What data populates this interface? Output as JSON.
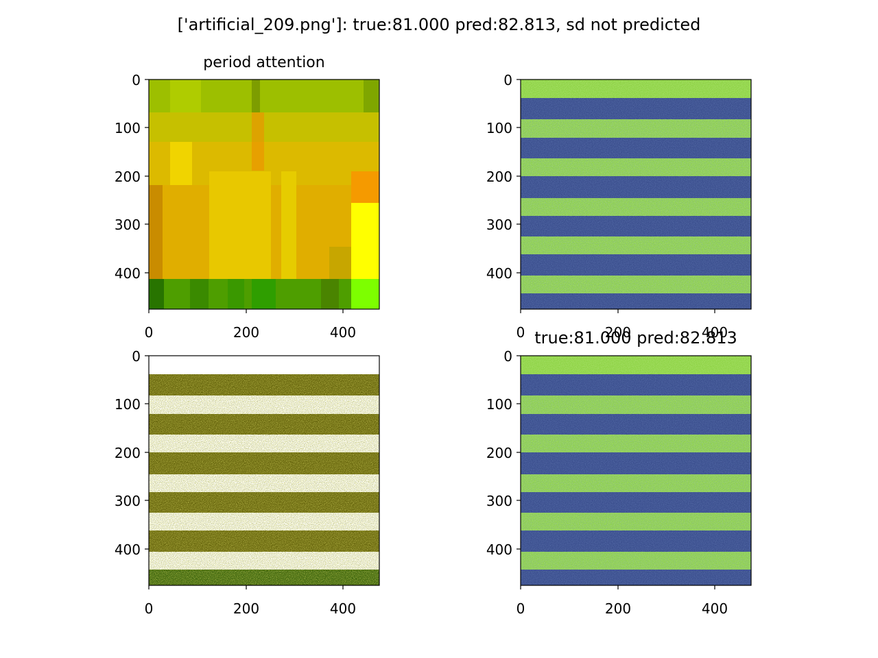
{
  "figure": {
    "suptitle": "['artificial_209.png']: true:81.000 pred:82.813, sd not predicted"
  },
  "panels": [
    {
      "title": "period attention",
      "x_ticks": [
        "0",
        "200",
        "400"
      ],
      "y_ticks": [
        "0",
        "100",
        "200",
        "300",
        "400"
      ],
      "image": "colored attention heatmap (yellow/orange/green blocks)"
    },
    {
      "title": "",
      "x_ticks": [
        "0",
        "200",
        "400"
      ],
      "y_ticks": [
        "0",
        "100",
        "200",
        "300",
        "400"
      ],
      "image": "noisy horizontal stripes, viridis (green / dark blue)"
    },
    {
      "title": "",
      "x_ticks": [
        "0",
        "200",
        "400"
      ],
      "y_ticks": [
        "0",
        "100",
        "200",
        "300",
        "400"
      ],
      "image": "noisy stripes masked by attention (yellow/green on white)"
    },
    {
      "title": "true:81.000 pred:82.813",
      "x_ticks": [
        "0",
        "200",
        "400"
      ],
      "y_ticks": [
        "0",
        "100",
        "200",
        "300",
        "400"
      ],
      "image": "noisy horizontal stripes, viridis (green / dark blue)"
    }
  ],
  "chart_data": [
    {
      "type": "heatmap",
      "title": "period attention",
      "xlim": [
        0,
        475
      ],
      "ylim": [
        475,
        0
      ],
      "x_ticks": [
        0,
        200,
        400
      ],
      "y_ticks": [
        0,
        100,
        200,
        300,
        400
      ],
      "bottom_band_start": 410,
      "colors": {
        "upper": "#9fc400",
        "middle": "#e0b000",
        "bottom": "#3fa000",
        "bright": "#ffff00"
      }
    },
    {
      "type": "heatmap",
      "title": "",
      "xlim": [
        0,
        475
      ],
      "ylim": [
        475,
        0
      ],
      "x_ticks": [
        0,
        200,
        400
      ],
      "y_ticks": [
        0,
        100,
        200,
        300,
        400
      ],
      "dark_bands": [
        [
          38,
          82
        ],
        [
          120,
          162
        ],
        [
          200,
          245
        ],
        [
          282,
          325
        ],
        [
          362,
          405
        ],
        [
          442,
          475
        ]
      ],
      "colors": {
        "light": "#8fd446",
        "dark": "#3b4f8e"
      }
    },
    {
      "type": "heatmap",
      "title": "",
      "xlim": [
        0,
        475
      ],
      "ylim": [
        475,
        0
      ],
      "x_ticks": [
        0,
        200,
        400
      ],
      "y_ticks": [
        0,
        100,
        200,
        300,
        400
      ],
      "stripe_bands": [
        [
          38,
          82
        ],
        [
          120,
          162
        ],
        [
          200,
          245
        ],
        [
          282,
          325
        ],
        [
          362,
          405
        ],
        [
          442,
          475
        ]
      ],
      "colors": {
        "stripe": "#8a7a1a",
        "background": "#ffffff"
      }
    },
    {
      "type": "heatmap",
      "title": "true:81.000 pred:82.813",
      "xlim": [
        0,
        475
      ],
      "ylim": [
        475,
        0
      ],
      "x_ticks": [
        0,
        200,
        400
      ],
      "y_ticks": [
        0,
        100,
        200,
        300,
        400
      ],
      "dark_bands": [
        [
          38,
          82
        ],
        [
          120,
          162
        ],
        [
          200,
          245
        ],
        [
          282,
          325
        ],
        [
          362,
          405
        ],
        [
          442,
          475
        ]
      ],
      "colors": {
        "light": "#8fd446",
        "dark": "#3b4f8e"
      }
    }
  ]
}
